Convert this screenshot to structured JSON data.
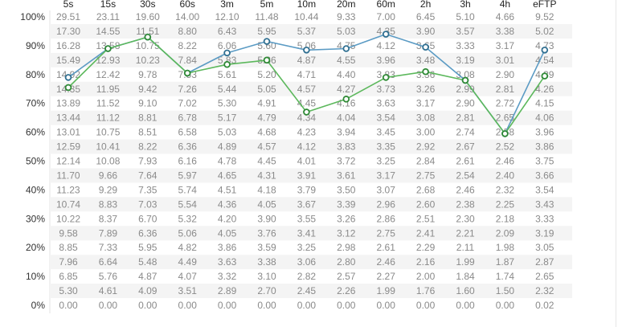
{
  "chart_data": {
    "type": "line",
    "title": "",
    "xlabel": "",
    "ylabel": "",
    "categories": [
      "5s",
      "15s",
      "30s",
      "60s",
      "3m",
      "5m",
      "10m",
      "20m",
      "60m",
      "2h",
      "3h",
      "4h",
      "eFTP"
    ],
    "ylim": [
      0,
      100
    ],
    "yticks": [
      "100%",
      "90%",
      "80%",
      "70%",
      "60%",
      "50%",
      "40%",
      "30%",
      "20%",
      "10%",
      "0%"
    ],
    "grid": "horizontal row banding",
    "table_rows": [
      [
        "29.51",
        "23.11",
        "19.60",
        "14.00",
        "12.10",
        "11.48",
        "10.44",
        "9.33",
        "7.00",
        "6.45",
        "5.10",
        "4.66",
        "9.52"
      ],
      [
        "17.30",
        "14.55",
        "11.51",
        "8.80",
        "6.43",
        "5.95",
        "5.37",
        "5.03",
        "4.35",
        "3.90",
        "3.57",
        "3.38",
        "5.02"
      ],
      [
        "16.28",
        "13.58",
        "10.75",
        "8.22",
        "6.06",
        "5.60",
        "5.06",
        "4.75",
        "4.12",
        "3.65",
        "3.33",
        "3.17",
        "4.73"
      ],
      [
        "15.49",
        "12.93",
        "10.23",
        "7.84",
        "5.83",
        "5.36",
        "4.87",
        "4.55",
        "3.96",
        "3.48",
        "3.19",
        "3.01",
        "4.54"
      ],
      [
        "14.92",
        "12.42",
        "9.78",
        "7.53",
        "5.61",
        "5.20",
        "4.71",
        "4.40",
        "3.83",
        "3.36",
        "3.08",
        "2.90",
        "4.39"
      ],
      [
        "14.35",
        "11.95",
        "9.42",
        "7.26",
        "5.44",
        "5.05",
        "4.57",
        "4.27",
        "3.73",
        "3.26",
        "2.99",
        "2.81",
        "4.26"
      ],
      [
        "13.89",
        "11.52",
        "9.10",
        "7.02",
        "5.30",
        "4.91",
        "4.45",
        "4.16",
        "3.63",
        "3.17",
        "2.90",
        "2.72",
        "4.15"
      ],
      [
        "13.44",
        "11.12",
        "8.81",
        "6.78",
        "5.17",
        "4.79",
        "4.34",
        "4.04",
        "3.54",
        "3.08",
        "2.81",
        "2.65",
        "4.06"
      ],
      [
        "13.01",
        "10.75",
        "8.51",
        "6.58",
        "5.03",
        "4.68",
        "4.23",
        "3.94",
        "3.45",
        "3.00",
        "2.74",
        "2.58",
        "3.96"
      ],
      [
        "12.59",
        "10.41",
        "8.22",
        "6.36",
        "4.89",
        "4.57",
        "4.12",
        "3.83",
        "3.35",
        "2.92",
        "2.67",
        "2.52",
        "3.86"
      ],
      [
        "12.14",
        "10.08",
        "7.93",
        "6.16",
        "4.78",
        "4.45",
        "4.01",
        "3.72",
        "3.25",
        "2.84",
        "2.61",
        "2.46",
        "3.75"
      ],
      [
        "11.70",
        "9.66",
        "7.64",
        "5.97",
        "4.65",
        "4.31",
        "3.91",
        "3.61",
        "3.17",
        "2.75",
        "2.54",
        "2.40",
        "3.66"
      ],
      [
        "11.23",
        "9.29",
        "7.35",
        "5.74",
        "4.51",
        "4.18",
        "3.79",
        "3.50",
        "3.07",
        "2.68",
        "2.46",
        "2.32",
        "3.54"
      ],
      [
        "10.74",
        "8.83",
        "7.03",
        "5.54",
        "4.36",
        "4.05",
        "3.67",
        "3.39",
        "2.96",
        "2.60",
        "2.38",
        "2.25",
        "3.43"
      ],
      [
        "10.22",
        "8.37",
        "6.70",
        "5.32",
        "4.20",
        "3.90",
        "3.55",
        "3.26",
        "2.86",
        "2.51",
        "2.30",
        "2.18",
        "3.33"
      ],
      [
        "9.58",
        "7.89",
        "6.36",
        "5.06",
        "4.05",
        "3.76",
        "3.41",
        "3.12",
        "2.75",
        "2.41",
        "2.21",
        "2.09",
        "3.19"
      ],
      [
        "8.85",
        "7.33",
        "5.95",
        "4.82",
        "3.86",
        "3.59",
        "3.25",
        "2.98",
        "2.61",
        "2.29",
        "2.11",
        "1.98",
        "3.05"
      ],
      [
        "7.96",
        "6.64",
        "5.48",
        "4.49",
        "3.63",
        "3.38",
        "3.06",
        "2.80",
        "2.46",
        "2.16",
        "1.99",
        "1.87",
        "2.87"
      ],
      [
        "6.85",
        "5.76",
        "4.87",
        "4.07",
        "3.32",
        "3.10",
        "2.82",
        "2.57",
        "2.27",
        "2.00",
        "1.84",
        "1.74",
        "2.65"
      ],
      [
        "5.30",
        "4.61",
        "4.09",
        "3.51",
        "2.89",
        "2.70",
        "2.45",
        "2.26",
        "1.99",
        "1.76",
        "1.60",
        "1.50",
        "2.32"
      ],
      [
        "0.00",
        "0.00",
        "0.00",
        "0.00",
        "0.00",
        "0.00",
        "0.00",
        "0.00",
        "0.00",
        "0.00",
        "0.00",
        "0.00",
        "0.02"
      ]
    ],
    "series": [
      {
        "color": "#5b9bc4",
        "values": [
          79,
          89,
          93,
          80.5,
          87.5,
          91.5,
          88.5,
          89,
          94,
          89.5,
          78,
          59.5,
          88.5
        ]
      },
      {
        "color": "#5cb85c",
        "values": [
          75.5,
          89,
          93,
          80.5,
          83.5,
          85,
          67,
          71.5,
          79,
          81,
          78,
          59.5,
          79.5
        ]
      }
    ]
  }
}
